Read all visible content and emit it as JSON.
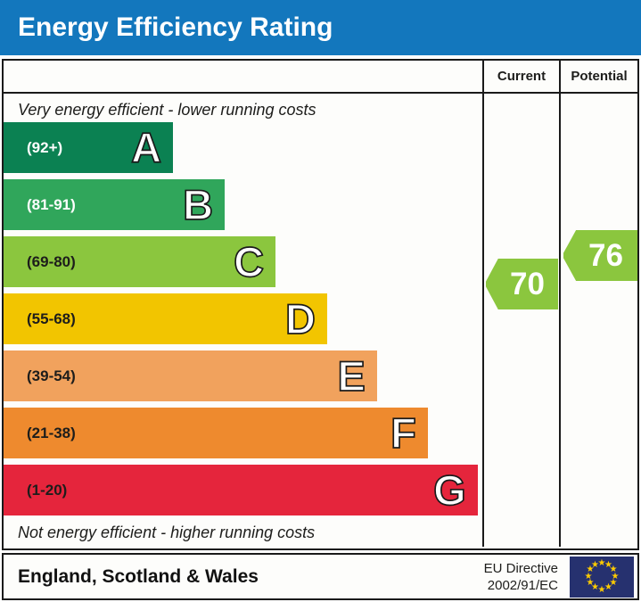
{
  "header": {
    "title": "Energy Efficiency Rating",
    "bg_color": "#1377bd"
  },
  "columns": {
    "current": "Current",
    "potential": "Potential"
  },
  "notes": {
    "top": "Very energy efficient - lower running costs",
    "bottom": "Not energy efficient - higher running costs"
  },
  "bands": [
    {
      "letter": "A",
      "range": "(92+)",
      "color": "#0b8152",
      "label_color": "#ffffff",
      "width_pct": 35.4
    },
    {
      "letter": "B",
      "range": "(81-91)",
      "color": "#30a65b",
      "label_color": "#ffffff",
      "width_pct": 46.2
    },
    {
      "letter": "C",
      "range": "(69-80)",
      "color": "#8bc63e",
      "label_color": "#1d1d1b",
      "width_pct": 56.8
    },
    {
      "letter": "D",
      "range": "(55-68)",
      "color": "#f2c500",
      "label_color": "#1d1d1b",
      "width_pct": 67.6
    },
    {
      "letter": "E",
      "range": "(39-54)",
      "color": "#f1a25d",
      "label_color": "#1d1d1b",
      "width_pct": 78.0
    },
    {
      "letter": "F",
      "range": "(21-38)",
      "color": "#ee8a2e",
      "label_color": "#1d1d1b",
      "width_pct": 88.6
    },
    {
      "letter": "G",
      "range": "(1-20)",
      "color": "#e5253c",
      "label_color": "#1d1d1b",
      "width_pct": 99.0
    }
  ],
  "ratings": {
    "current": {
      "value": "70",
      "color": "#8bc63e"
    },
    "potential": {
      "value": "76",
      "color": "#8bc63e"
    }
  },
  "footer": {
    "region": "England, Scotland & Wales",
    "directive_line1": "EU Directive",
    "directive_line2": "2002/91/EC",
    "flag": {
      "bg": "#26316f",
      "star_color": "#fc0",
      "star_glyph": "★"
    }
  },
  "chart_data": {
    "type": "bar",
    "title": "Energy Efficiency Rating",
    "categories": [
      "A",
      "B",
      "C",
      "D",
      "E",
      "F",
      "G"
    ],
    "band_ranges": [
      "92+",
      "81-91",
      "69-80",
      "55-68",
      "39-54",
      "21-38",
      "1-20"
    ],
    "band_colors": [
      "#0b8152",
      "#30a65b",
      "#8bc63e",
      "#f2c500",
      "#f1a25d",
      "#ee8a2e",
      "#e5253c"
    ],
    "series": [
      {
        "name": "Current",
        "values": [
          70
        ],
        "band": "C"
      },
      {
        "name": "Potential",
        "values": [
          76
        ],
        "band": "C"
      }
    ],
    "scale": [
      1,
      100
    ],
    "top_annotation": "Very energy efficient - lower running costs",
    "bottom_annotation": "Not energy efficient - higher running costs",
    "footer_left": "England, Scotland & Wales",
    "footer_right": "EU Directive 2002/91/EC"
  }
}
